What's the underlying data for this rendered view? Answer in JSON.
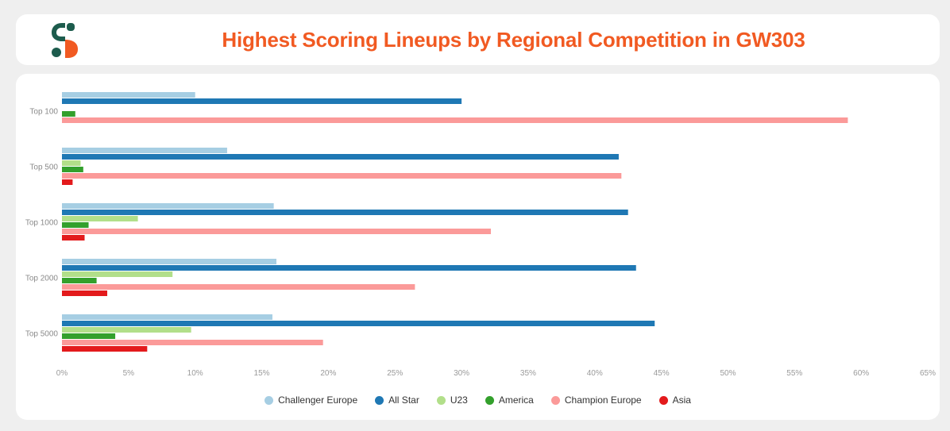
{
  "header": {
    "title": "Highest Scoring Lineups by Regional Competition in GW303",
    "logo_icon": "brand-s-logo-icon"
  },
  "chart_data": {
    "type": "bar",
    "orientation": "horizontal",
    "title": "Highest Scoring Lineups by Regional Competition in GW303",
    "xlabel": "",
    "ylabel": "",
    "xlim": [
      0,
      65
    ],
    "x_ticks": [
      "0%",
      "5%",
      "10%",
      "15%",
      "20%",
      "25%",
      "30%",
      "35%",
      "40%",
      "45%",
      "50%",
      "55%",
      "60%",
      "65%"
    ],
    "x_tick_values": [
      0,
      5,
      10,
      15,
      20,
      25,
      30,
      35,
      40,
      45,
      50,
      55,
      60,
      65
    ],
    "grid": false,
    "legend_position": "bottom-center",
    "categories": [
      "Top 100",
      "Top 500",
      "Top 1000",
      "Top 2000",
      "Top 5000"
    ],
    "series": [
      {
        "name": "Challenger Europe",
        "color": "#a6cee3",
        "values": [
          10.0,
          12.4,
          15.9,
          16.1,
          15.8
        ]
      },
      {
        "name": "All Star",
        "color": "#1f78b4",
        "values": [
          30.0,
          41.8,
          42.5,
          43.1,
          44.5
        ]
      },
      {
        "name": "U23",
        "color": "#b2df8a",
        "values": [
          0,
          1.4,
          5.7,
          8.3,
          9.7
        ]
      },
      {
        "name": "America",
        "color": "#33a02c",
        "values": [
          1.0,
          1.6,
          2.0,
          2.6,
          4.0
        ]
      },
      {
        "name": "Champion Europe",
        "color": "#fb9a99",
        "values": [
          59.0,
          42.0,
          32.2,
          26.5,
          19.6
        ]
      },
      {
        "name": "Asia",
        "color": "#e31a1c",
        "values": [
          0,
          0.8,
          1.7,
          3.4,
          6.4
        ]
      }
    ]
  }
}
